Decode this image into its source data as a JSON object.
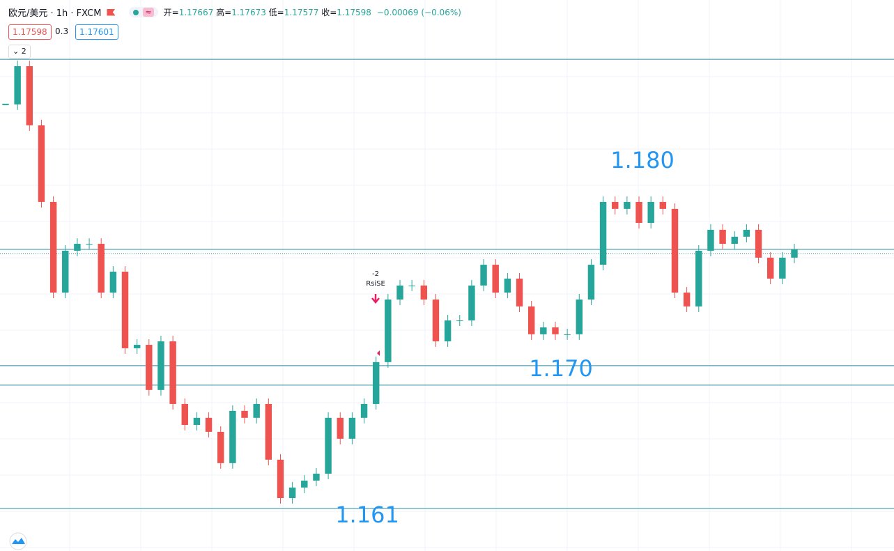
{
  "chart_data": {
    "type": "candlestick",
    "title": "欧元/美元 · 1h · FXCM",
    "ohlc_legend": [
      {
        "label": "开=",
        "value": "1.17667"
      },
      {
        "label": "高=",
        "value": "1.17673"
      },
      {
        "label": "低=",
        "value": "1.17577"
      },
      {
        "label": "收=",
        "value": "1.17598"
      }
    ],
    "change": "−0.00069 (−0.06%)",
    "sell_price": "1.17598",
    "spread": "0.3",
    "buy_price": "1.17601",
    "indicator_count": "2",
    "signal": {
      "count": "-2",
      "label": "RsiSE"
    },
    "annotations": [
      "1.180",
      "1.170",
      "1.161"
    ],
    "close": [
      1.18436,
      1.18657,
      1.18315,
      1.17872,
      1.17348,
      1.1759,
      1.1763,
      1.1763,
      1.17348,
      1.17469,
      1.17026,
      1.17046,
      1.16785,
      1.17066,
      1.16704,
      1.16583,
      1.16624,
      1.16543,
      1.16362,
      1.16664,
      1.16624,
      1.16704,
      1.16382,
      1.1616,
      1.16221,
      1.16261,
      1.16301,
      1.16624,
      1.16503,
      1.16624,
      1.16704,
      1.16946,
      1.17308,
      1.17389,
      1.17389,
      1.17308,
      1.17066,
      1.17187,
      1.17187,
      1.17389,
      1.17509,
      1.17348,
      1.17429,
      1.17268,
      1.17107,
      1.17147,
      1.17107,
      1.17107,
      1.17308,
      1.17509,
      1.17872,
      1.17832,
      1.17872,
      1.17751,
      1.17872,
      1.17832,
      1.17348,
      1.17268,
      1.1759,
      1.17711,
      1.1763,
      1.17671,
      1.17711,
      1.1755,
      1.17429,
      1.1755,
      1.17598
    ],
    "levels": [
      1.18697,
      1.17598,
      1.16926,
      1.16813,
      1.161
    ],
    "current_price": 1.17574,
    "ylim": [
      1.15858,
      1.18798
    ],
    "up_color": "#26a69a",
    "down_color": "#ef5350",
    "level_color": "#2a8fa0",
    "grid": true
  }
}
